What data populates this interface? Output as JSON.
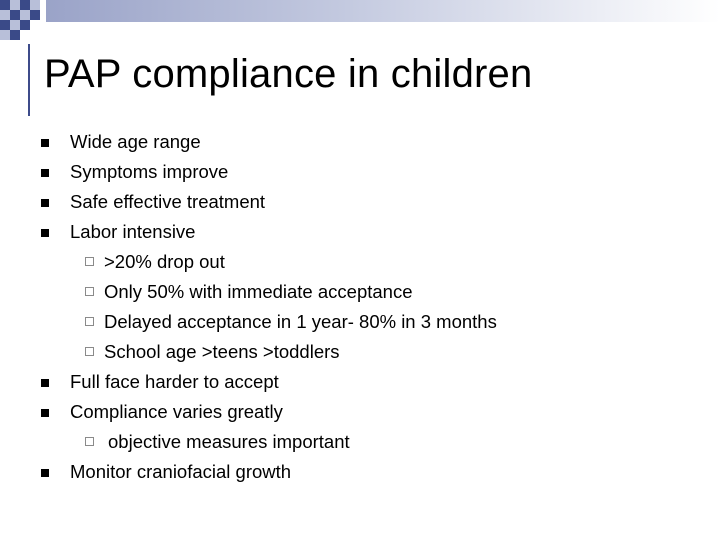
{
  "slide": {
    "title": "PAP compliance in children",
    "colors": {
      "title_text": "#000000",
      "body_text": "#000000",
      "bullet": "#000000",
      "sub_bullet_border": "#8a8a8a",
      "accent_rule": "#3d4b8a",
      "checker_dark": "#3a4a88",
      "checker_light": "#b8bfd9"
    },
    "bullets": [
      {
        "text": "Wide age range",
        "level": 1
      },
      {
        "text": "Symptoms improve",
        "level": 1
      },
      {
        "text": "Safe effective treatment",
        "level": 1
      },
      {
        "text": "Labor intensive",
        "level": 1
      },
      {
        "text": ">20% drop out",
        "level": 2
      },
      {
        "text": "Only 50% with immediate acceptance",
        "level": 2
      },
      {
        "text": "Delayed acceptance in 1 year- 80% in 3 months",
        "level": 2
      },
      {
        "text": "School age >teens >toddlers",
        "level": 2
      },
      {
        "text": "Full face harder to accept",
        "level": 1
      },
      {
        "text": "Compliance varies greatly",
        "level": 1
      },
      {
        "text": " objective measures important",
        "level": 2
      },
      {
        "text": "Monitor craniofacial growth",
        "level": 1
      }
    ]
  }
}
